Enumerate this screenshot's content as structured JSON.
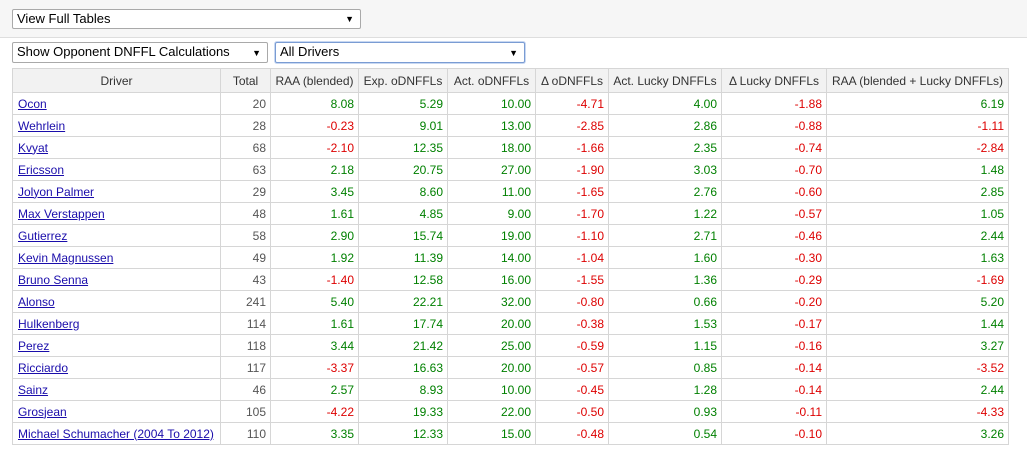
{
  "controls": {
    "view_select": "View Full Tables",
    "calc_select": "Show Opponent DNFFL Calculations",
    "driver_select": "All Drivers"
  },
  "table": {
    "columns": [
      "Driver",
      "Total",
      "RAA (blended)",
      "Exp. oDNFFLs",
      "Act. oDNFFLs",
      "Δ oDNFFLs",
      "Act. Lucky DNFFLs",
      "Δ Lucky DNFFLs",
      "RAA (blended + Lucky DNFFLs)"
    ],
    "rows": [
      [
        "Ocon",
        "20",
        "8.08",
        "5.29",
        "10.00",
        "-4.71",
        "4.00",
        "-1.88",
        "6.19"
      ],
      [
        "Wehrlein",
        "28",
        "-0.23",
        "9.01",
        "13.00",
        "-2.85",
        "2.86",
        "-0.88",
        "-1.11"
      ],
      [
        "Kvyat",
        "68",
        "-2.10",
        "12.35",
        "18.00",
        "-1.66",
        "2.35",
        "-0.74",
        "-2.84"
      ],
      [
        "Ericsson",
        "63",
        "2.18",
        "20.75",
        "27.00",
        "-1.90",
        "3.03",
        "-0.70",
        "1.48"
      ],
      [
        "Jolyon Palmer",
        "29",
        "3.45",
        "8.60",
        "11.00",
        "-1.65",
        "2.76",
        "-0.60",
        "2.85"
      ],
      [
        "Max Verstappen",
        "48",
        "1.61",
        "4.85",
        "9.00",
        "-1.70",
        "1.22",
        "-0.57",
        "1.05"
      ],
      [
        "Gutierrez",
        "58",
        "2.90",
        "15.74",
        "19.00",
        "-1.10",
        "2.71",
        "-0.46",
        "2.44"
      ],
      [
        "Kevin Magnussen",
        "49",
        "1.92",
        "11.39",
        "14.00",
        "-1.04",
        "1.60",
        "-0.30",
        "1.63"
      ],
      [
        "Bruno Senna",
        "43",
        "-1.40",
        "12.58",
        "16.00",
        "-1.55",
        "1.36",
        "-0.29",
        "-1.69"
      ],
      [
        "Alonso",
        "241",
        "5.40",
        "22.21",
        "32.00",
        "-0.80",
        "0.66",
        "-0.20",
        "5.20"
      ],
      [
        "Hulkenberg",
        "114",
        "1.61",
        "17.74",
        "20.00",
        "-0.38",
        "1.53",
        "-0.17",
        "1.44"
      ],
      [
        "Perez",
        "118",
        "3.44",
        "21.42",
        "25.00",
        "-0.59",
        "1.15",
        "-0.16",
        "3.27"
      ],
      [
        "Ricciardo",
        "117",
        "-3.37",
        "16.63",
        "20.00",
        "-0.57",
        "0.85",
        "-0.14",
        "-3.52"
      ],
      [
        "Sainz",
        "46",
        "2.57",
        "8.93",
        "10.00",
        "-0.45",
        "1.28",
        "-0.14",
        "2.44"
      ],
      [
        "Grosjean",
        "105",
        "-4.22",
        "19.33",
        "22.00",
        "-0.50",
        "0.93",
        "-0.11",
        "-4.33"
      ],
      [
        "Michael Schumacher (2004 To 2012)",
        "110",
        "3.35",
        "12.33",
        "15.00",
        "-0.48",
        "0.54",
        "-0.10",
        "3.26"
      ]
    ]
  },
  "colors": {
    "positive": "#008000",
    "negative": "#dd0000",
    "link": "#1a0dab"
  }
}
